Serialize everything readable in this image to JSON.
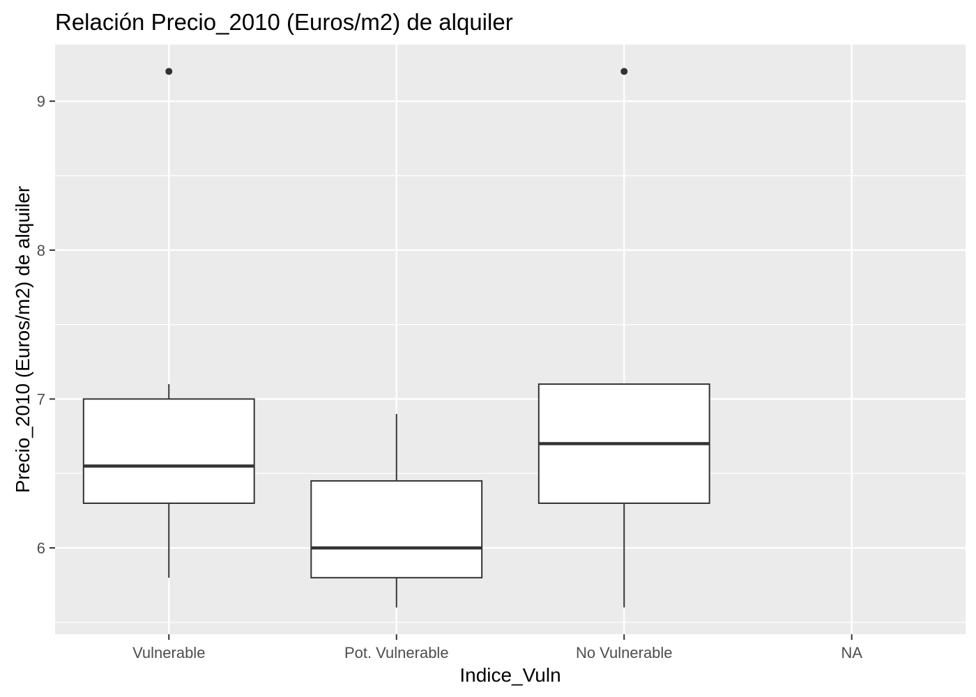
{
  "chart_data": {
    "type": "boxplot",
    "title": "Relación  Precio_2010 (Euros/m2) de alquiler",
    "xlabel": "Indice_Vuln",
    "ylabel": "Precio_2010 (Euros/m2) de alquiler",
    "categories": [
      "Vulnerable",
      "Pot. Vulnerable",
      "No Vulnerable",
      "NA"
    ],
    "boxes": [
      {
        "category": "Vulnerable",
        "whisker_low": 5.8,
        "q1": 6.3,
        "median": 6.55,
        "q3": 7.0,
        "whisker_high": 7.1,
        "outliers": [
          9.2
        ]
      },
      {
        "category": "Pot. Vulnerable",
        "whisker_low": 5.6,
        "q1": 5.8,
        "median": 6.0,
        "q3": 6.45,
        "whisker_high": 6.9,
        "outliers": []
      },
      {
        "category": "No Vulnerable",
        "whisker_low": 5.6,
        "q1": 6.3,
        "median": 6.7,
        "q3": 7.1,
        "whisker_high": 7.1,
        "outliers": [
          9.2
        ]
      },
      {
        "category": "NA",
        "whisker_low": null,
        "q1": null,
        "median": null,
        "q3": null,
        "whisker_high": null,
        "outliers": []
      }
    ],
    "yticks": [
      6,
      7,
      8,
      9
    ],
    "ylim": [
      5.42,
      9.38
    ],
    "grid": true,
    "colors": {
      "panel_background": "#ebebeb",
      "grid": "#ffffff",
      "box_fill": "#ffffff",
      "box_stroke": "#333333",
      "tick_text": "#4d4d4d"
    }
  }
}
